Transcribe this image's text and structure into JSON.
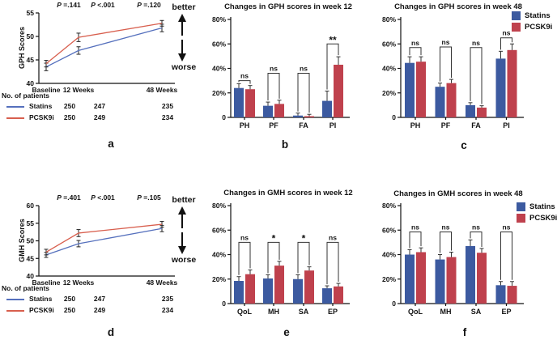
{
  "figure": {
    "legend": {
      "statins": "Statins",
      "pcsk9i": "PCSK9i"
    },
    "colors": {
      "statins_bar": "#3c5aa0",
      "pcsk9i_bar": "#bf414d",
      "statins_line": "#5570bd",
      "pcsk9i_line": "#d85f4e",
      "text": "#111111",
      "error_bar": "#333333"
    }
  },
  "chart_data": [
    {
      "id": "a",
      "letter": "a",
      "type": "line",
      "ylabel": "GPH Scores",
      "ylim": [
        40,
        55
      ],
      "yticks": [
        40,
        45,
        50,
        55
      ],
      "x": [
        "Baseline",
        "12 Weeks",
        "48 Weeks"
      ],
      "x_weeks": [
        0,
        12,
        48
      ],
      "p_values": [
        "P =.141",
        "P <.001",
        "P =.120"
      ],
      "direction_labels": {
        "up": "better",
        "down": "worse"
      },
      "series": [
        {
          "name": "Statins",
          "values": [
            43.5,
            47.0,
            51.8
          ],
          "errors": [
            0.8,
            0.8,
            0.8
          ]
        },
        {
          "name": "PCSK9i",
          "values": [
            44.2,
            49.8,
            52.8
          ],
          "errors": [
            0.7,
            0.9,
            0.6
          ]
        }
      ],
      "patients": {
        "label": "No. of patients",
        "rows": [
          {
            "name": "Statins",
            "counts": [
              "250",
              "247",
              "235"
            ]
          },
          {
            "name": "PCSK9i",
            "counts": [
              "250",
              "249",
              "234"
            ]
          }
        ]
      }
    },
    {
      "id": "b",
      "letter": "b",
      "type": "bar",
      "title": "Changes in GPH scores in week 12",
      "ylim": [
        0,
        80
      ],
      "yticks": [
        "0",
        "20%",
        "40%",
        "60%",
        "80%"
      ],
      "categories": [
        "PH",
        "PF",
        "FA",
        "PI"
      ],
      "series": [
        {
          "name": "Statins",
          "values": [
            24,
            9.5,
            1.5,
            13.5
          ],
          "errors": [
            3.5,
            3,
            2,
            8
          ]
        },
        {
          "name": "PCSK9i",
          "values": [
            23,
            11,
            1,
            43
          ],
          "errors": [
            3,
            3,
            1.5,
            6.5
          ]
        }
      ],
      "significance": [
        {
          "label": "ns",
          "y": 30
        },
        {
          "label": "ns",
          "y": 36
        },
        {
          "label": "ns",
          "y": 36
        },
        {
          "label": "**",
          "y": 60
        }
      ]
    },
    {
      "id": "c",
      "letter": "c",
      "type": "bar",
      "title": "Changes in GPH scores in week 48",
      "ylim": [
        0,
        80
      ],
      "yticks": [
        "0",
        "20%",
        "40%",
        "60%",
        "80%"
      ],
      "categories": [
        "PH",
        "PF",
        "FA",
        "PI"
      ],
      "series": [
        {
          "name": "Statins",
          "values": [
            44.5,
            25,
            10,
            48
          ],
          "errors": [
            5,
            3,
            2,
            6
          ]
        },
        {
          "name": "PCSK9i",
          "values": [
            45.5,
            28,
            8,
            55
          ],
          "errors": [
            4,
            3,
            1.5,
            5
          ]
        }
      ],
      "significance": [
        {
          "label": "ns",
          "y": 57
        },
        {
          "label": "ns",
          "y": 57.5
        },
        {
          "label": "ns",
          "y": 57
        },
        {
          "label": "ns",
          "y": 65
        }
      ],
      "has_legend": true
    },
    {
      "id": "d",
      "letter": "d",
      "type": "line",
      "ylabel": "GMH Scores",
      "ylim": [
        40,
        60
      ],
      "yticks": [
        40,
        45,
        50,
        55,
        60
      ],
      "x": [
        "Baseline",
        "12 Weeks",
        "48 Weeks"
      ],
      "x_weeks": [
        0,
        12,
        48
      ],
      "p_values": [
        "P =.401",
        "P <.001",
        "P =.105"
      ],
      "direction_labels": {
        "up": "better",
        "down": "worse"
      },
      "series": [
        {
          "name": "Statins",
          "values": [
            46.0,
            49.2,
            53.5
          ],
          "errors": [
            0.7,
            0.9,
            0.9
          ]
        },
        {
          "name": "PCSK9i",
          "values": [
            46.8,
            52.2,
            54.7
          ],
          "errors": [
            0.8,
            1.0,
            0.8
          ]
        }
      ],
      "patients": {
        "label": "No. of patients",
        "rows": [
          {
            "name": "Statins",
            "counts": [
              "250",
              "247",
              "235"
            ]
          },
          {
            "name": "PCSK9i",
            "counts": [
              "250",
              "249",
              "234"
            ]
          }
        ]
      }
    },
    {
      "id": "e",
      "letter": "e",
      "type": "bar",
      "title": "Changes in GMH scores in week 12",
      "ylim": [
        0,
        80
      ],
      "yticks": [
        "0",
        "20%",
        "40%",
        "60%",
        "80%"
      ],
      "categories": [
        "QoL",
        "MH",
        "SA",
        "EP"
      ],
      "series": [
        {
          "name": "Statins",
          "values": [
            18.5,
            20.5,
            20,
            12.5
          ],
          "errors": [
            3.5,
            3,
            3.5,
            2
          ]
        },
        {
          "name": "PCSK9i",
          "values": [
            24,
            31,
            27,
            14
          ],
          "errors": [
            3.5,
            3.5,
            3,
            2.5
          ]
        }
      ],
      "significance": [
        {
          "label": "ns",
          "y": 50
        },
        {
          "label": "*",
          "y": 50
        },
        {
          "label": "*",
          "y": 50
        },
        {
          "label": "ns",
          "y": 50
        }
      ]
    },
    {
      "id": "f",
      "letter": "f",
      "type": "bar",
      "title": "Changes in GMH scores in week 48",
      "ylim": [
        0,
        80
      ],
      "yticks": [
        "0",
        "20%",
        "40%",
        "60%",
        "80%"
      ],
      "categories": [
        "QoL",
        "MH",
        "SA",
        "EP"
      ],
      "series": [
        {
          "name": "Statins",
          "values": [
            40,
            36,
            47,
            15
          ],
          "errors": [
            4,
            4,
            5,
            3
          ]
        },
        {
          "name": "PCSK9i",
          "values": [
            42,
            38,
            41.5,
            14.5
          ],
          "errors": [
            3.5,
            4,
            3.5,
            3.5
          ]
        }
      ],
      "significance": [
        {
          "label": "ns",
          "y": 58.5
        },
        {
          "label": "ns",
          "y": 58.5
        },
        {
          "label": "ns",
          "y": 58.5
        },
        {
          "label": "ns",
          "y": 58.5
        }
      ],
      "has_legend": true
    }
  ]
}
